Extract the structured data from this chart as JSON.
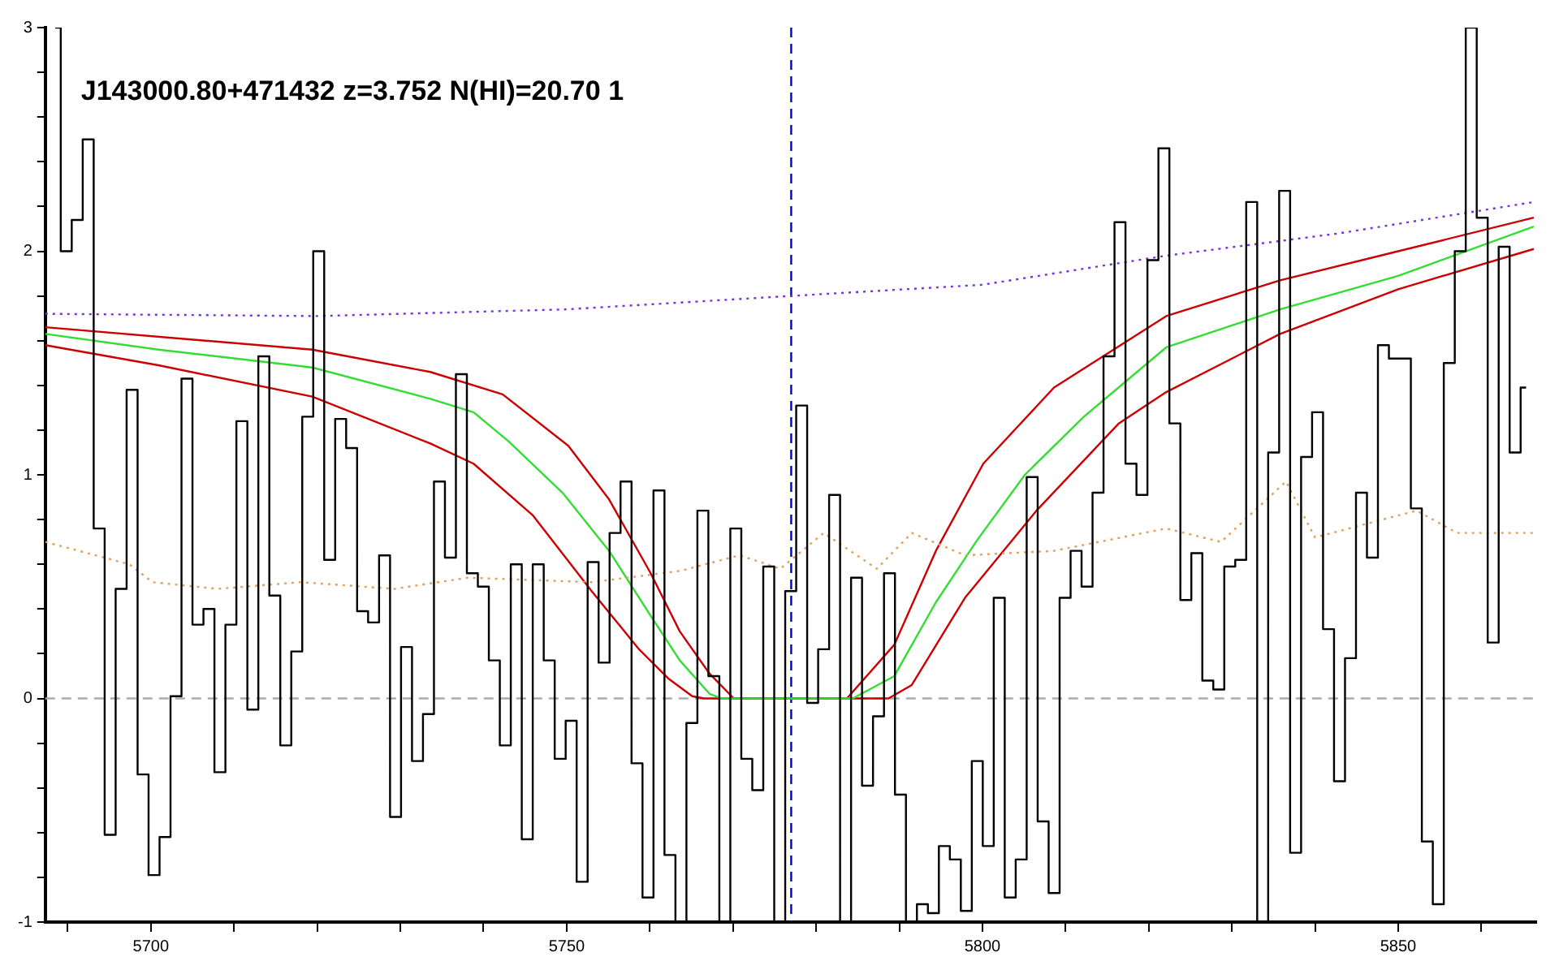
{
  "chart_data": {
    "type": "step",
    "title": "J143000.80+471432 z=3.752 N(HI)=20.70 1",
    "xlim": [
      5687.3,
      5866.6
    ],
    "ylim": [
      -1,
      3
    ],
    "xticks": [
      {
        "value": 5690,
        "label": null
      },
      5700,
      {
        "value": 5710,
        "label": null
      },
      {
        "value": 5720,
        "label": null
      },
      {
        "value": 5730,
        "label": null
      },
      {
        "value": 5740,
        "label": null
      },
      5750,
      {
        "value": 5760,
        "label": null
      },
      {
        "value": 5770,
        "label": null
      },
      {
        "value": 5780,
        "label": null
      },
      {
        "value": 5790,
        "label": null
      },
      5800,
      {
        "value": 5810,
        "label": null
      },
      {
        "value": 5820,
        "label": null
      },
      {
        "value": 5830,
        "label": null
      },
      {
        "value": 5840,
        "label": null
      },
      5850,
      {
        "value": 5860,
        "label": null
      }
    ],
    "yticks": [
      -1,
      {
        "value": -0.8,
        "label": null
      },
      {
        "value": -0.6,
        "label": null
      },
      {
        "value": -0.4,
        "label": null
      },
      {
        "value": -0.2,
        "label": null
      },
      0,
      {
        "value": 0.2,
        "label": null
      },
      {
        "value": 0.4,
        "label": null
      },
      {
        "value": 0.6,
        "label": null
      },
      {
        "value": 0.8,
        "label": null
      },
      1,
      {
        "value": 1.2,
        "label": null
      },
      {
        "value": 1.4,
        "label": null
      },
      {
        "value": 1.6,
        "label": null
      },
      {
        "value": 1.8,
        "label": null
      },
      2,
      {
        "value": 2.2,
        "label": null
      },
      {
        "value": 2.4,
        "label": null
      },
      {
        "value": 2.6,
        "label": null
      },
      {
        "value": 2.8,
        "label": null
      },
      3
    ],
    "marker": "none",
    "ref_lines": [
      {
        "axis": "x",
        "value": 5777,
        "color": "#0000cc",
        "line_style": "dashed"
      },
      {
        "axis": "y",
        "value": 0,
        "color": "#aaaaaa",
        "line_style": "dashed"
      }
    ],
    "series": [
      {
        "type": "step",
        "color": "#000000",
        "x": [
          5688.5,
          5689.82,
          5691.14,
          5692.46,
          5693.78,
          5695.1,
          5696.42,
          5697.74,
          5699.06,
          5700.38,
          5701.7,
          5703.02,
          5704.34,
          5705.66,
          5706.98,
          5708.3,
          5709.62,
          5710.94,
          5712.26,
          5713.58,
          5714.9,
          5716.22,
          5717.54,
          5718.86,
          5720.18,
          5721.5,
          5722.82,
          5724.14,
          5725.46,
          5726.78,
          5728.1,
          5729.42,
          5730.74,
          5732.06,
          5733.38,
          5734.7,
          5736.02,
          5737.34,
          5738.66,
          5739.98,
          5741.3,
          5742.62,
          5743.94,
          5745.26,
          5746.58,
          5747.9,
          5749.22,
          5750.54,
          5751.86,
          5753.18,
          5754.5,
          5755.82,
          5757.14,
          5758.46,
          5759.78,
          5761.1,
          5762.42,
          5763.74,
          5765.06,
          5766.38,
          5767.7,
          5769.02,
          5770.34,
          5771.66,
          5772.98,
          5774.3,
          5775.62,
          5776.94,
          5778.26,
          5779.58,
          5780.9,
          5782.22,
          5783.54,
          5784.86,
          5786.18,
          5787.5,
          5788.82,
          5790.14,
          5791.46,
          5792.78,
          5794.1,
          5795.42,
          5796.74,
          5798.06,
          5799.38,
          5800.7,
          5802.02,
          5803.34,
          5804.66,
          5805.98,
          5807.3,
          5808.62,
          5809.94,
          5811.26,
          5812.58,
          5813.9,
          5815.22,
          5816.54,
          5817.86,
          5819.18,
          5820.5,
          5821.82,
          5823.14,
          5824.46,
          5825.78,
          5827.1,
          5828.42,
          5829.74,
          5831.06,
          5832.38,
          5833.7,
          5835.02,
          5836.34,
          5837.66,
          5838.98,
          5840.3,
          5841.62,
          5842.94,
          5844.26,
          5845.58,
          5846.9,
          5848.22,
          5849.54,
          5850.86,
          5852.18,
          5853.5,
          5854.82,
          5856.14,
          5857.46,
          5858.78,
          5860.1,
          5861.42,
          5862.74,
          5864.06,
          5865.38
        ],
        "values": [
          3,
          2.0,
          2.14,
          2.5,
          0.76,
          -0.61,
          0.49,
          1.38,
          -0.34,
          -0.79,
          -0.62,
          0.01,
          1.43,
          0.33,
          0.4,
          -0.33,
          0.33,
          1.24,
          -0.05,
          1.53,
          0.46,
          -0.21,
          0.21,
          1.26,
          2.0,
          0.62,
          1.25,
          1.12,
          0.39,
          0.34,
          0.64,
          -0.53,
          0.23,
          -0.28,
          -0.07,
          0.97,
          0.63,
          1.45,
          0.56,
          0.5,
          0.17,
          -0.21,
          0.6,
          -0.63,
          0.6,
          0.17,
          -0.27,
          -0.1,
          -0.82,
          0.61,
          0.16,
          0.74,
          0.97,
          -0.29,
          -0.89,
          0.93,
          -0.7,
          -1,
          -0.11,
          0.84,
          0.1,
          -1,
          0.76,
          -0.27,
          -0.41,
          0.59,
          -1,
          0.48,
          1.31,
          -0.02,
          0.22,
          0.91,
          -1,
          0.54,
          -0.39,
          -0.08,
          0.56,
          -0.43,
          -1,
          -0.92,
          -0.96,
          -0.66,
          -0.72,
          -0.95,
          -0.28,
          -0.66,
          0.45,
          -0.89,
          -0.72,
          0.99,
          -0.55,
          -0.87,
          0.45,
          0.66,
          0.5,
          0.92,
          1.53,
          2.13,
          1.05,
          0.91,
          1.96,
          2.46,
          1.23,
          0.44,
          0.65,
          0.08,
          0.04,
          0.59,
          0.62,
          2.22,
          -1,
          1.1,
          2.27,
          -0.69,
          1.08,
          1.28,
          0.31,
          -0.37,
          0.18,
          0.92,
          0.63,
          1.58,
          1.52,
          1.52,
          0.85,
          -0.64,
          -0.92,
          1.5,
          2.0,
          3,
          2.15,
          0.25,
          2.02,
          1.1,
          1.39
        ]
      },
      {
        "type": "line",
        "color": "#e0a060",
        "line_style": "dotted",
        "x": [
          5687.3,
          5697.4,
          5700.2,
          5708,
          5718,
          5729.3,
          5738.1,
          5753,
          5763.6,
          5770.8,
          5775.7,
          5780.9,
          5787.3,
          5791.5,
          5797.9,
          5808.6,
          5822.1,
          5828.7,
          5836.5,
          5840,
          5852.2,
          5857.1,
          5866.3
        ],
        "values": [
          0.7,
          0.6,
          0.52,
          0.49,
          0.52,
          0.49,
          0.54,
          0.52,
          0.57,
          0.64,
          0.58,
          0.74,
          0.58,
          0.74,
          0.64,
          0.66,
          0.76,
          0.7,
          0.97,
          0.72,
          0.84,
          0.74,
          0.74
        ]
      },
      {
        "type": "line",
        "color": "#7733dd",
        "line_style": "dotted",
        "x": [
          5687.3,
          5720,
          5750,
          5777,
          5800,
          5822.1,
          5842.9,
          5866.3
        ],
        "values": [
          1.72,
          1.71,
          1.74,
          1.8,
          1.85,
          1.98,
          2.08,
          2.22
        ]
      },
      {
        "type": "line",
        "color": "#33dd33",
        "line_style": "solid",
        "x": [
          5687.3,
          5700.9,
          5719.4,
          5733.6,
          5738.8,
          5743,
          5749.5,
          5755.1,
          5760.1,
          5763.6,
          5767.2,
          5768.6,
          5784.4,
          5789.4,
          5794.4,
          5799.4,
          5805.1,
          5812.2,
          5822.1,
          5835.8,
          5850,
          5866.3
        ],
        "values": [
          1.63,
          1.56,
          1.48,
          1.34,
          1.28,
          1.15,
          0.92,
          0.66,
          0.37,
          0.17,
          0.02,
          0,
          0,
          0.1,
          0.43,
          0.71,
          1.0,
          1.26,
          1.57,
          1.74,
          1.89,
          2.11
        ]
      },
      {
        "type": "line",
        "color": "#cc0000",
        "line_style": "solid",
        "x": [
          5687.3,
          5719.4,
          5733.6,
          5742.3,
          5750.2,
          5755.1,
          5760.1,
          5763.6,
          5767.2,
          5770.1,
          5783.7,
          5789.4,
          5794.4,
          5800.1,
          5808.6,
          5822.1,
          5835.8,
          5850,
          5866.3
        ],
        "values": [
          1.66,
          1.56,
          1.46,
          1.36,
          1.13,
          0.89,
          0.56,
          0.3,
          0.11,
          0,
          0,
          0.24,
          0.66,
          1.05,
          1.39,
          1.71,
          1.87,
          2.0,
          2.15
        ]
      },
      {
        "type": "line",
        "color": "#cc0000",
        "line_style": "solid",
        "x": [
          5687.3,
          5700.9,
          5719.4,
          5733.6,
          5738.8,
          5745.9,
          5753,
          5758.7,
          5762.2,
          5765.1,
          5766.5,
          5788.7,
          5791.5,
          5797.9,
          5806.5,
          5816.4,
          5822.1,
          5835.8,
          5850,
          5866.3
        ],
        "values": [
          1.58,
          1.49,
          1.35,
          1.14,
          1.05,
          0.82,
          0.48,
          0.22,
          0.09,
          0.01,
          0,
          0,
          0.06,
          0.45,
          0.84,
          1.23,
          1.37,
          1.63,
          1.83,
          2.01
        ]
      }
    ]
  }
}
